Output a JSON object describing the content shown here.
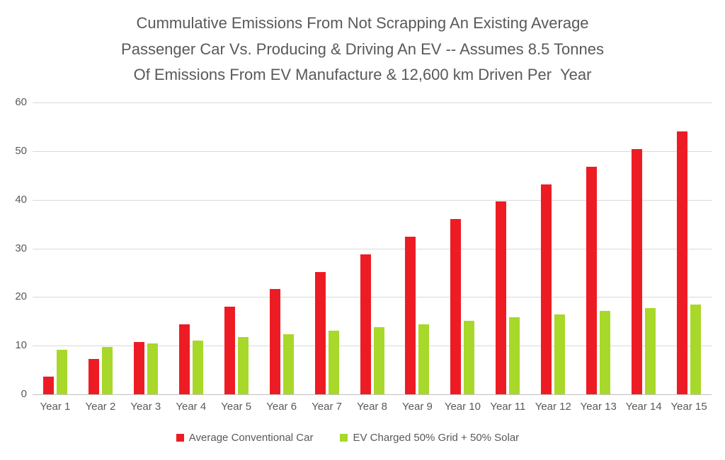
{
  "title": {
    "line1": "Cummulative Emissions From Not Scrapping An Existing Average",
    "line2": "Passenger Car Vs. Producing & Driving An EV -- Assumes 8.5 Tonnes",
    "line3": "Of Emissions From EV Manufacture & 12,600 km Driven Per  Year"
  },
  "chart_data": {
    "type": "bar",
    "categories": [
      "Year 1",
      "Year 2",
      "Year 3",
      "Year 4",
      "Year 5",
      "Year 6",
      "Year 7",
      "Year 8",
      "Year 9",
      "Year 10",
      "Year 11",
      "Year 12",
      "Year 13",
      "Year 14",
      "Year 15"
    ],
    "series": [
      {
        "name": "Average Conventional Car",
        "color": "#ED1C24",
        "values": [
          3.6,
          7.2,
          10.8,
          14.4,
          18.0,
          21.6,
          25.2,
          28.8,
          32.4,
          36.0,
          39.6,
          43.2,
          46.8,
          50.4,
          54.0
        ]
      },
      {
        "name": "EV Charged 50% Grid + 50% Solar",
        "color": "#A8D82A",
        "values": [
          9.2,
          9.8,
          10.5,
          11.1,
          11.8,
          12.4,
          13.1,
          13.8,
          14.4,
          15.1,
          15.8,
          16.4,
          17.1,
          17.7,
          18.4
        ]
      }
    ],
    "ylim": [
      0,
      60
    ],
    "yticks": [
      0,
      10,
      20,
      30,
      40,
      50,
      60
    ],
    "grid": true,
    "legend_position": "bottom",
    "xlabel": "",
    "ylabel": ""
  },
  "colors": {
    "grid": "#D9D9D9",
    "axis": "#C0C0C0",
    "text": "#595959",
    "background": "#FFFFFF"
  }
}
